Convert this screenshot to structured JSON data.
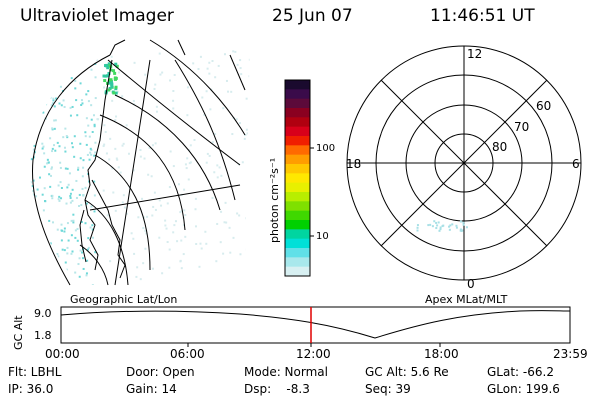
{
  "header": {
    "instrument": "Ultraviolet Imager",
    "date": "25 Jun 07",
    "time": "11:46:51 UT"
  },
  "colorbar": {
    "unit_label": "photon cm⁻²s⁻¹",
    "ticks": [
      "100",
      "10"
    ],
    "colors": [
      "#1a0a2e",
      "#3a0b4a",
      "#5c0a3a",
      "#8a0020",
      "#b00010",
      "#d8001a",
      "#f01f00",
      "#ff6a00",
      "#ff9d00",
      "#ffc800",
      "#ffe800",
      "#e8f000",
      "#b8ee00",
      "#7fe000",
      "#3fd800",
      "#00d000",
      "#00d5a0",
      "#00e0d8",
      "#60e0e8",
      "#a8e8ec",
      "#d8f0f2"
    ]
  },
  "left_panel": {
    "caption": "Geographic Lat/Lon"
  },
  "polar_panel": {
    "caption": "Apex MLat/MLT",
    "mlt_labels": {
      "top": "12",
      "left": "18",
      "right": "6",
      "bottom": "0"
    },
    "lat_labels": [
      "60",
      "70",
      "80"
    ]
  },
  "alt_plot": {
    "ylabel": "GC Alt",
    "yticks": [
      "9.0",
      "1.8"
    ],
    "xticks": [
      "00:00",
      "06:00",
      "12:00",
      "18:00",
      "23:59"
    ],
    "cursor_color": "#e00000"
  },
  "info": {
    "flt": "Flt: LBHL",
    "ip": "IP: 36.0",
    "door": "Door: Open",
    "gain": "Gain: 14",
    "mode": "Mode: Normal",
    "dsp": "Dsp:    -8.3",
    "gcalt": "GC Alt: 5.6 Re",
    "seq": "Seq: 39",
    "glat": "GLat: -66.2",
    "glon": "GLon: 199.6"
  }
}
